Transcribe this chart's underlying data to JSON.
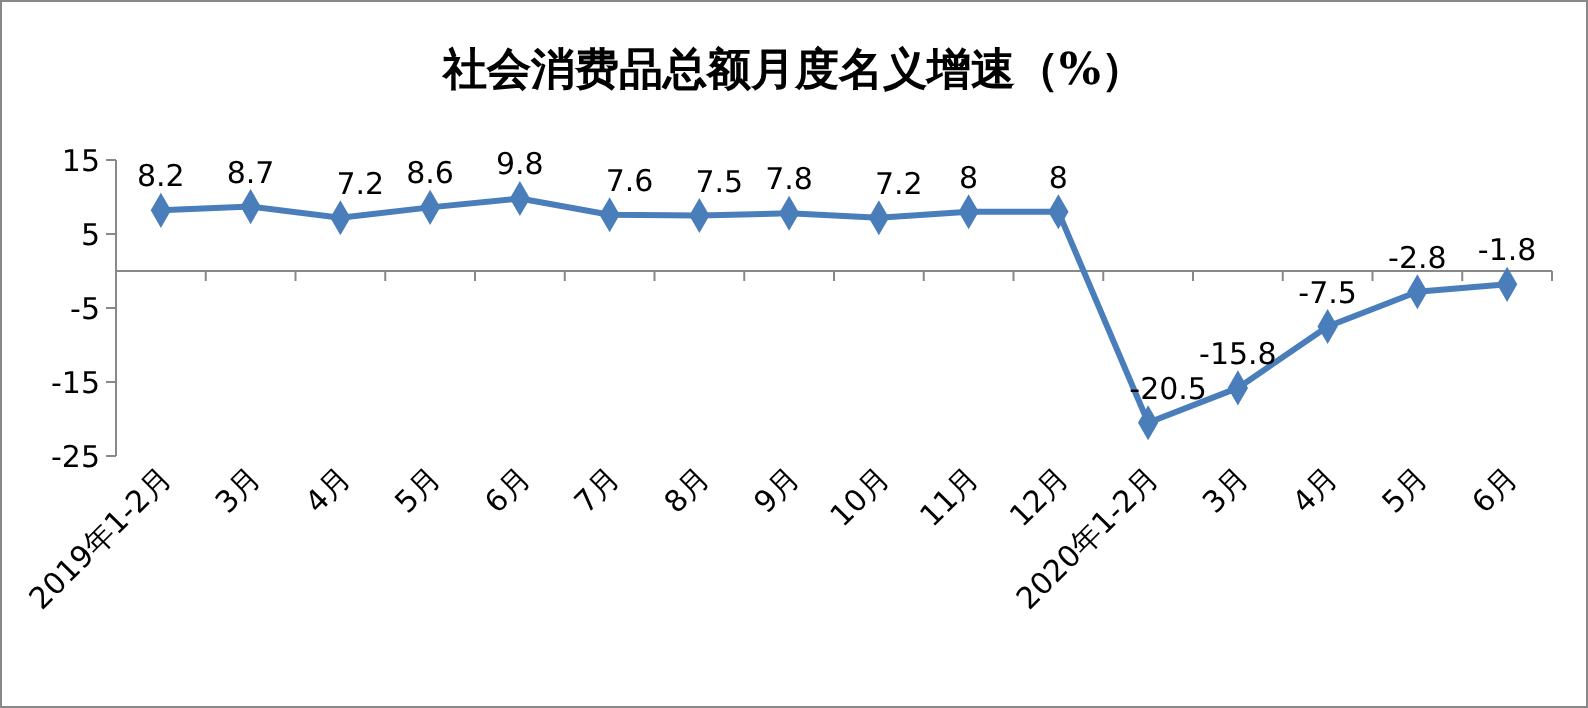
{
  "chart_data": {
    "type": "line",
    "title": "社会消费品总额月度名义增速（%）",
    "categories": [
      "2019年1-2月",
      "3月",
      "4月",
      "5月",
      "6月",
      "7月",
      "8月",
      "9月",
      "10月",
      "11月",
      "12月",
      "2020年1-2月",
      "3月",
      "4月",
      "5月",
      "6月"
    ],
    "series": [
      {
        "color": "#4a7ebb",
        "values": [
          8.2,
          8.7,
          7.2,
          8.6,
          9.8,
          7.6,
          7.5,
          7.8,
          7.2,
          8,
          8,
          -20.5,
          -15.8,
          -7.5,
          -2.8,
          -1.8
        ]
      }
    ],
    "ylim": [
      -25,
      15
    ],
    "yticks": [
      -25,
      -15,
      -5,
      5,
      15
    ],
    "grid": false,
    "marker": "diamond",
    "line_style": "solid",
    "data_labels": true
  }
}
